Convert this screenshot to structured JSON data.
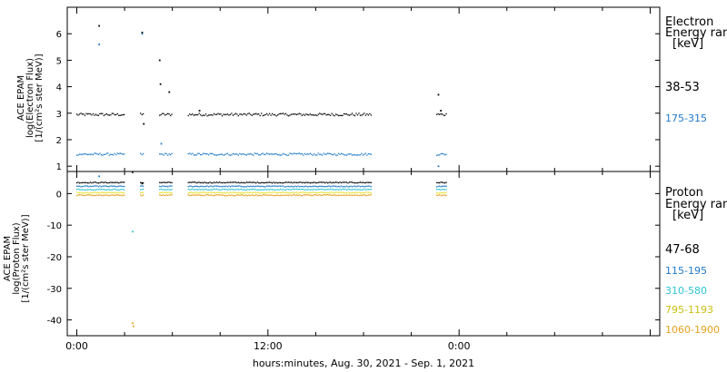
{
  "chart_data": [
    {
      "type": "scatter",
      "ylabel_lines": [
        "ACE EPAM",
        "log(Electron Flux)",
        "[1/(cm²s ster MeV)]"
      ],
      "ylim": [
        0.8,
        7.0
      ],
      "yticks": [
        1,
        2,
        3,
        4,
        5,
        6
      ],
      "legend_title": "Electron",
      "legend_subtitle": "Energy ranges",
      "legend_unit": "[keV]",
      "series": [
        {
          "name": "38-53",
          "color": "#000000",
          "baseline": 2.95,
          "jitter": 0.05,
          "spikes": [
            {
              "x": 1.4,
              "y": 6.3
            },
            {
              "x": 4.1,
              "y": 6.05
            },
            {
              "x": 4.2,
              "y": 2.6
            },
            {
              "x": 5.2,
              "y": 5.0
            },
            {
              "x": 5.25,
              "y": 4.1
            },
            {
              "x": 5.8,
              "y": 3.8
            },
            {
              "x": 7.7,
              "y": 3.1
            },
            {
              "x": 22.7,
              "y": 3.7
            },
            {
              "x": 22.85,
              "y": 3.1
            }
          ]
        },
        {
          "name": "175-315",
          "color": "#1f78c8",
          "baseline": 1.45,
          "jitter": 0.04,
          "spikes": [
            {
              "x": 1.4,
              "y": 5.6
            },
            {
              "x": 4.1,
              "y": 6.0
            },
            {
              "x": 5.3,
              "y": 1.85
            },
            {
              "x": 22.7,
              "y": 1.0
            }
          ]
        }
      ]
    },
    {
      "type": "scatter",
      "ylabel_lines": [
        "ACE EPAM",
        "log(Proton Flux)",
        "[1/(cm²s ster MeV)]"
      ],
      "ylim": [
        -45,
        7
      ],
      "yticks": [
        0,
        -10,
        -20,
        -30,
        -40
      ],
      "legend_title": "Proton",
      "legend_subtitle": "Energy ranges",
      "legend_unit": "[keV]",
      "series": [
        {
          "name": "47-68",
          "color": "#000000",
          "baseline": 3.5,
          "jitter": 0.15,
          "spikes": [
            {
              "x": 3.5,
              "y": 6.8
            },
            {
              "x": 4.1,
              "y": 3.2
            }
          ]
        },
        {
          "name": "115-195",
          "color": "#1f78c8",
          "baseline": 2.3,
          "jitter": 0.15,
          "spikes": [
            {
              "x": 1.4,
              "y": 5.5
            }
          ]
        },
        {
          "name": "310-580",
          "color": "#2ec4d0",
          "baseline": 1.3,
          "jitter": 0.15,
          "spikes": [
            {
              "x": 3.5,
              "y": -12.0
            }
          ]
        },
        {
          "name": "795-1193",
          "color": "#e8e030",
          "baseline": 0.3,
          "jitter": 0.15,
          "spikes": []
        },
        {
          "name": "1060-1900",
          "color": "#e8a020",
          "baseline": -0.5,
          "jitter": 0.15,
          "spikes": [
            {
              "x": 3.5,
              "y": -41.0
            },
            {
              "x": 3.55,
              "y": -42.0
            }
          ]
        }
      ]
    }
  ],
  "shared": {
    "x_unit": "hours",
    "xlim": [
      -0.6,
      36.6
    ],
    "xticks": [
      {
        "x": 0,
        "label": "0:00"
      },
      {
        "x": 12,
        "label": "12:00"
      },
      {
        "x": 24,
        "label": "0:00"
      }
    ],
    "data_segments": [
      [
        0,
        3.0
      ],
      [
        4.0,
        4.25
      ],
      [
        5.2,
        6.0
      ],
      [
        7.0,
        18.5
      ],
      [
        22.6,
        23.2
      ]
    ],
    "xlabel": "hours:minutes, Aug. 30, 2021 - Sep.  1, 2021"
  }
}
